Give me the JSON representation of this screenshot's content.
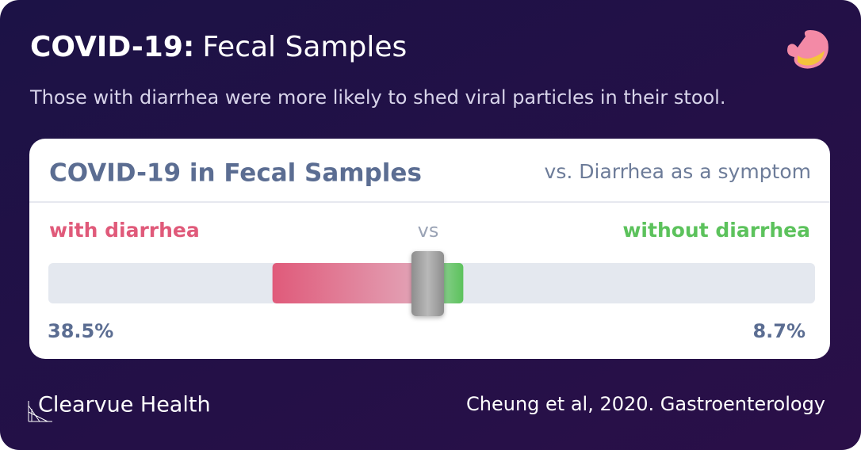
{
  "header": {
    "title_bold": "COVID-19:",
    "title_rest": "Fecal Samples",
    "subtitle": "Those with diarrhea were more likely to shed viral particles in their stool."
  },
  "chart_data": {
    "type": "versus",
    "title": "COVID-19 in Fecal Samples",
    "subtitle": "vs. Diarrhea as a symptom",
    "separator": "vs",
    "series": [
      {
        "name": "with diarrhea",
        "color": "#e05a7a",
        "values": [
          38.5
        ],
        "value_labels": [
          "38.5%"
        ]
      },
      {
        "name": "without diarrhea",
        "color": "#5cc25c",
        "values": [
          8.7
        ],
        "value_labels": [
          "8.7%"
        ]
      }
    ]
  },
  "footer": {
    "brand": "Clearvue Health",
    "source": "Cheung et al, 2020. Gastroenterology"
  }
}
